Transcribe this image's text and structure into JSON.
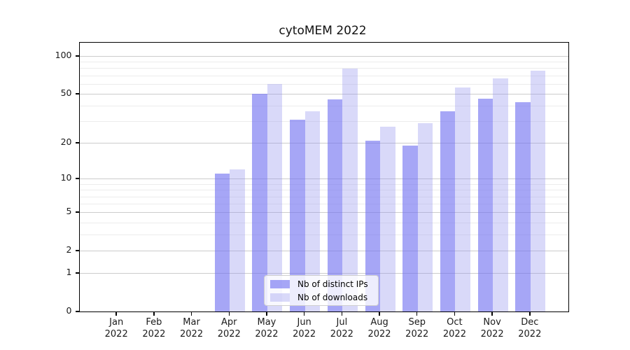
{
  "title": "cytoMEM 2022",
  "chart_data": {
    "type": "bar",
    "categories": [
      "Jan",
      "Feb",
      "Mar",
      "Apr",
      "May",
      "Jun",
      "Jul",
      "Aug",
      "Sep",
      "Oct",
      "Nov",
      "Dec"
    ],
    "category_year": "2022",
    "series": [
      {
        "name": "Nb of distinct IPs",
        "color": "rgba(112,112,240,0.62)",
        "values": [
          0,
          0,
          0,
          11,
          50,
          31,
          45,
          21,
          19,
          36,
          46,
          43
        ]
      },
      {
        "name": "Nb of downloads",
        "color": "rgba(150,150,238,0.36)",
        "values": [
          0,
          0,
          0,
          12,
          60,
          36,
          79,
          27,
          29,
          56,
          66,
          76
        ]
      }
    ],
    "title": "cytoMEM 2022",
    "xlabel": "",
    "ylabel": "",
    "yscale": "log1p",
    "ylim": [
      0,
      127.5
    ],
    "yticks": [
      100,
      50,
      20,
      10,
      5,
      2,
      1,
      0
    ],
    "yticks_minor": [
      3,
      4,
      6,
      7,
      8,
      9,
      30,
      40,
      60,
      70,
      80,
      90
    ],
    "grid": true,
    "legend_position": "bottom-center-inside"
  },
  "colors": {
    "axis": "#000000",
    "grid_major": "#cccccc",
    "grid_minor": "#ececec",
    "background": "#ffffff"
  }
}
